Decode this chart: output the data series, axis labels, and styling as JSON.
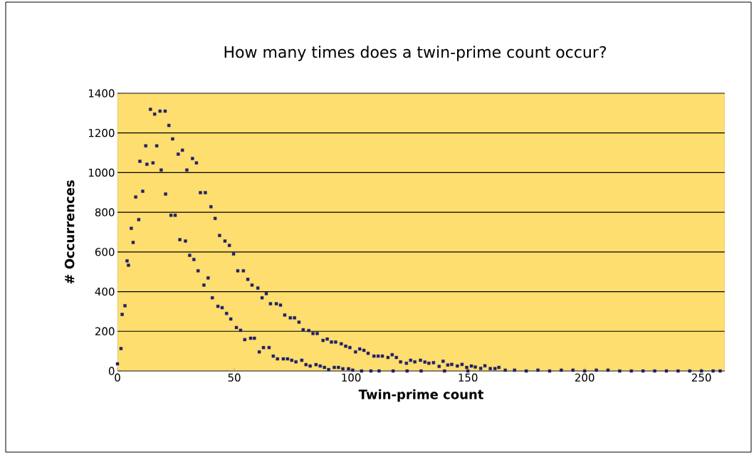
{
  "chart_data": {
    "type": "scatter",
    "title": "How many times does a twin-prime count occur?",
    "xlabel": "Twin-prime count",
    "ylabel": "# Occurrences",
    "x": [
      0,
      1.5,
      2,
      3.2,
      4.1,
      4.7,
      5.9,
      6.7,
      7.8,
      9.1,
      9.6,
      10.8,
      12.1,
      12.6,
      14.1,
      15.2,
      15.9,
      16.8,
      18.2,
      18.7,
      20.4,
      20.6,
      22,
      22.9,
      23.6,
      24.7,
      26,
      26.7,
      27.8,
      29.1,
      29.7,
      30.9,
      32.1,
      32.7,
      33.8,
      34.5,
      35.5,
      37,
      37.6,
      38.8,
      40,
      40.6,
      41.8,
      43,
      43.7,
      44.8,
      46,
      46.7,
      47.9,
      48.5,
      49.7,
      50.9,
      51.5,
      52.7,
      53.9,
      54.5,
      55.8,
      57,
      57.6,
      58.6,
      60.1,
      60.7,
      61.9,
      62.5,
      63.7,
      64.9,
      65.5,
      66.7,
      68,
      68.5,
      69.8,
      71,
      71.6,
      72.8,
      74,
      74.6,
      75.8,
      76.4,
      77.7,
      78.9,
      79.5,
      80.7,
      81.9,
      82.5,
      83.7,
      85,
      85.5,
      86.8,
      88,
      88.6,
      89.8,
      90.4,
      91.6,
      92.8,
      93.4,
      94.6,
      95.8,
      96.5,
      97.7,
      98.9,
      99.5,
      100.7,
      101.9,
      103.7,
      104.5,
      105.5,
      107.3,
      108.5,
      109.8,
      111.6,
      112,
      113.4,
      115.8,
      117.6,
      118,
      119.4,
      121.2,
      123.7,
      124,
      125.5,
      127.3,
      129.7,
      130,
      131.6,
      133.3,
      135.3,
      137.7,
      139.4,
      140,
      141.4,
      143.1,
      145.5,
      147.5,
      149.5,
      150,
      151.5,
      153.2,
      155.5,
      157.3,
      159.6,
      161.6,
      163.3,
      166,
      170,
      175,
      180,
      185,
      190,
      195,
      200,
      205,
      210,
      215,
      220,
      225,
      230,
      235,
      240,
      245,
      250,
      255,
      258
    ],
    "series": [
      {
        "color": "#1f1f6b",
        "values": [
          36,
          113,
          285,
          329,
          555,
          533,
          719,
          648,
          877,
          763,
          1057,
          906,
          1135,
          1042,
          1319,
          1049,
          1295,
          1135,
          1310,
          1013,
          1310,
          892,
          1238,
          785,
          1170,
          785,
          1093,
          662,
          1113,
          655,
          1013,
          583,
          1071,
          562,
          1049,
          505,
          899,
          433,
          899,
          469,
          828,
          369,
          769,
          326,
          683,
          319,
          655,
          290,
          633,
          262,
          590,
          219,
          505,
          205,
          505,
          158,
          462,
          165,
          433,
          165,
          418,
          96,
          369,
          118,
          390,
          118,
          339,
          75,
          339,
          61,
          332,
          61,
          282,
          61,
          268,
          54,
          268,
          46,
          246,
          54,
          208,
          32,
          204,
          25,
          189,
          32,
          189,
          25,
          154,
          18,
          161,
          7,
          146,
          18,
          146,
          18,
          137,
          11,
          125,
          11,
          118,
          4,
          96,
          111,
          0,
          104,
          89,
          0,
          75,
          75,
          0,
          75,
          68,
          82,
          0,
          68,
          46,
          39,
          0,
          54,
          46,
          54,
          0,
          45,
          39,
          42,
          23,
          49,
          0,
          30,
          33,
          25,
          33,
          18,
          0,
          25,
          20,
          13,
          26,
          12,
          12,
          18,
          4,
          4,
          0,
          4,
          0,
          4,
          4,
          0,
          4,
          4,
          0,
          0,
          0,
          0,
          0,
          0,
          0,
          0,
          0,
          0
        ]
      }
    ],
    "marker": "square",
    "grid": "y",
    "xlim": [
      0,
      260
    ],
    "xticks": [
      0,
      50,
      100,
      150,
      200,
      250
    ],
    "ylim": [
      0,
      1400
    ],
    "yticks": [
      0,
      200,
      400,
      600,
      800,
      1000,
      1200,
      1400
    ]
  }
}
